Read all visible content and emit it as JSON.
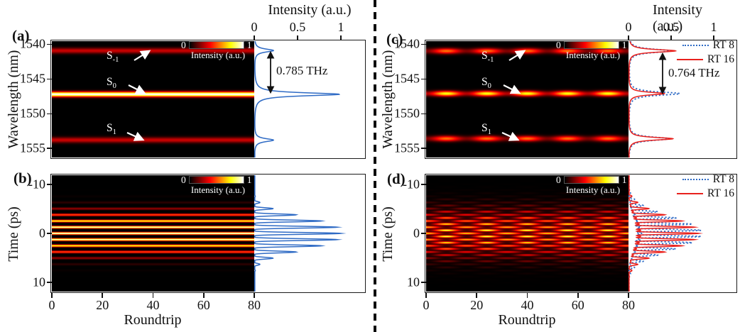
{
  "figure": {
    "panel_labels": {
      "a": "(a)",
      "b": "(b)",
      "c": "(c)",
      "d": "(d)"
    },
    "axis": {
      "roundtrip_label": "Roundtrip",
      "wavelength_label": "Wavelength (nm)",
      "time_label": "Time (ps)",
      "intensity_label": "Intensity (a.u.)",
      "roundtrip_ticks": [
        0,
        20,
        40,
        60,
        80
      ],
      "wavelength_ticks": [
        1540,
        1545,
        1550,
        1555
      ],
      "time_ticks": [
        -10,
        0,
        10
      ],
      "intensity_ticks": [
        "0",
        "0.5",
        "1"
      ]
    },
    "colorbar": {
      "min": "0",
      "max": "1",
      "label": "Intensity (a.u.)"
    },
    "legend": {
      "rt8": "RT 8",
      "rt16": "RT 16"
    },
    "annotations": {
      "thz_left": "0.785 THz",
      "thz_right": "0.764 THz"
    },
    "band_labels": [
      {
        "base": "S",
        "sub": "-1"
      },
      {
        "base": "S",
        "sub": "0"
      },
      {
        "base": "S",
        "sub": "1"
      }
    ],
    "colors": {
      "line_blue": "#2f6bc5",
      "line_red": "#e8211d",
      "frame": "#1b1b1b",
      "colormap": "hot"
    }
  },
  "chart_data": [
    {
      "id": "a",
      "type": "heatmap",
      "kind": "spectral",
      "x": {
        "label": "Roundtrip",
        "range": [
          0,
          80
        ]
      },
      "y": {
        "label": "Wavelength (nm)",
        "range": [
          1539.55,
          1556.3
        ]
      },
      "colorbar_range": [
        0,
        1
      ],
      "bands": [
        {
          "label": "S-1",
          "center_nm": 1540.9,
          "sigma_nm": 0.4,
          "peak": 0.3
        },
        {
          "label": "S0",
          "center_nm": 1547.2,
          "sigma_nm": 0.36,
          "peak": 1.0
        },
        {
          "label": "S1",
          "center_nm": 1553.8,
          "sigma_nm": 0.4,
          "peak": 0.3
        }
      ],
      "modulation": null,
      "annotation": {
        "text": "0.785 THz",
        "between": [
          "S-1",
          "S0"
        ]
      },
      "profile": {
        "axis_range": [
          0,
          1.27
        ],
        "series": [
          {
            "name": "",
            "color": "#2f6bc5",
            "dash": false,
            "peaks": [
              0.22,
              0.98,
              0.22
            ],
            "lorentz_w_nm": 0.27,
            "scale": 1.0
          }
        ]
      }
    },
    {
      "id": "b",
      "type": "heatmap",
      "kind": "temporal",
      "x": {
        "label": "Roundtrip",
        "range": [
          0,
          80
        ]
      },
      "y": {
        "label": "Time (ps)",
        "range": [
          -11.87,
          11.87
        ]
      },
      "colorbar_range": [
        0,
        1
      ],
      "pulse": {
        "period_ps": 1.27,
        "exponent": 5,
        "envelope_T_ps": 4.3,
        "envelope_p": 2.6
      },
      "modulation": null,
      "profile": {
        "axis_range": [
          0,
          1.27
        ],
        "series": [
          {
            "name": "",
            "color": "#2f6bc5",
            "dash": false,
            "rt": null,
            "scale": 1.0
          }
        ]
      }
    },
    {
      "id": "c",
      "type": "heatmap",
      "kind": "spectral",
      "x": {
        "label": "Roundtrip",
        "range": [
          0,
          80
        ]
      },
      "y": {
        "label": "Wavelength (nm)",
        "range": [
          1539.55,
          1556.3
        ]
      },
      "colorbar_range": [
        0,
        1
      ],
      "bands": [
        {
          "label": "S-1",
          "center_nm": 1540.95,
          "sigma_nm": 0.4,
          "peak": 0.55
        },
        {
          "label": "S0",
          "center_nm": 1547.1,
          "sigma_nm": 0.38,
          "peak": 0.78
        },
        {
          "label": "S1",
          "center_nm": 1553.6,
          "sigma_nm": 0.4,
          "peak": 0.55
        }
      ],
      "modulation": {
        "period_rt": 16,
        "phase_rt": 8,
        "floor": 0.35
      },
      "annotation": {
        "text": "0.764 THz",
        "between": [
          "S-1",
          "S0"
        ]
      },
      "profile": {
        "axis_range": [
          0,
          1.26
        ],
        "series": [
          {
            "name": "RT 8",
            "color": "#2f6bc5",
            "dash": true,
            "peaks": [
              0.5,
              0.6,
              0.48
            ],
            "lorentz_w_nm": 0.3,
            "scale": 1.0
          },
          {
            "name": "RT 16",
            "color": "#e8211d",
            "dash": false,
            "peaks": [
              0.55,
              0.42,
              0.52
            ],
            "lorentz_w_nm": 0.24,
            "scale": 1.0
          }
        ]
      }
    },
    {
      "id": "d",
      "type": "heatmap",
      "kind": "temporal",
      "x": {
        "label": "Roundtrip",
        "range": [
          0,
          80
        ]
      },
      "y": {
        "label": "Time (ps)",
        "range": [
          -11.87,
          11.87
        ]
      },
      "colorbar_range": [
        0,
        1
      ],
      "pulse": {
        "period_ps": 1.27,
        "exponent": 5,
        "envelope_T_ps": 4.6,
        "envelope_p": 2.2
      },
      "modulation": {
        "period_rt": 16,
        "phase_rt": 0,
        "depth": 0.35,
        "colmod": 0.18,
        "col_phase_rt": 8
      },
      "profile": {
        "axis_range": [
          0,
          1.26
        ],
        "series": [
          {
            "name": "RT 8",
            "color": "#2f6bc5",
            "dash": true,
            "rt": 8,
            "scale": 1.02
          },
          {
            "name": "RT 16",
            "color": "#e8211d",
            "dash": false,
            "rt": 16,
            "scale": 0.97
          }
        ]
      }
    }
  ]
}
